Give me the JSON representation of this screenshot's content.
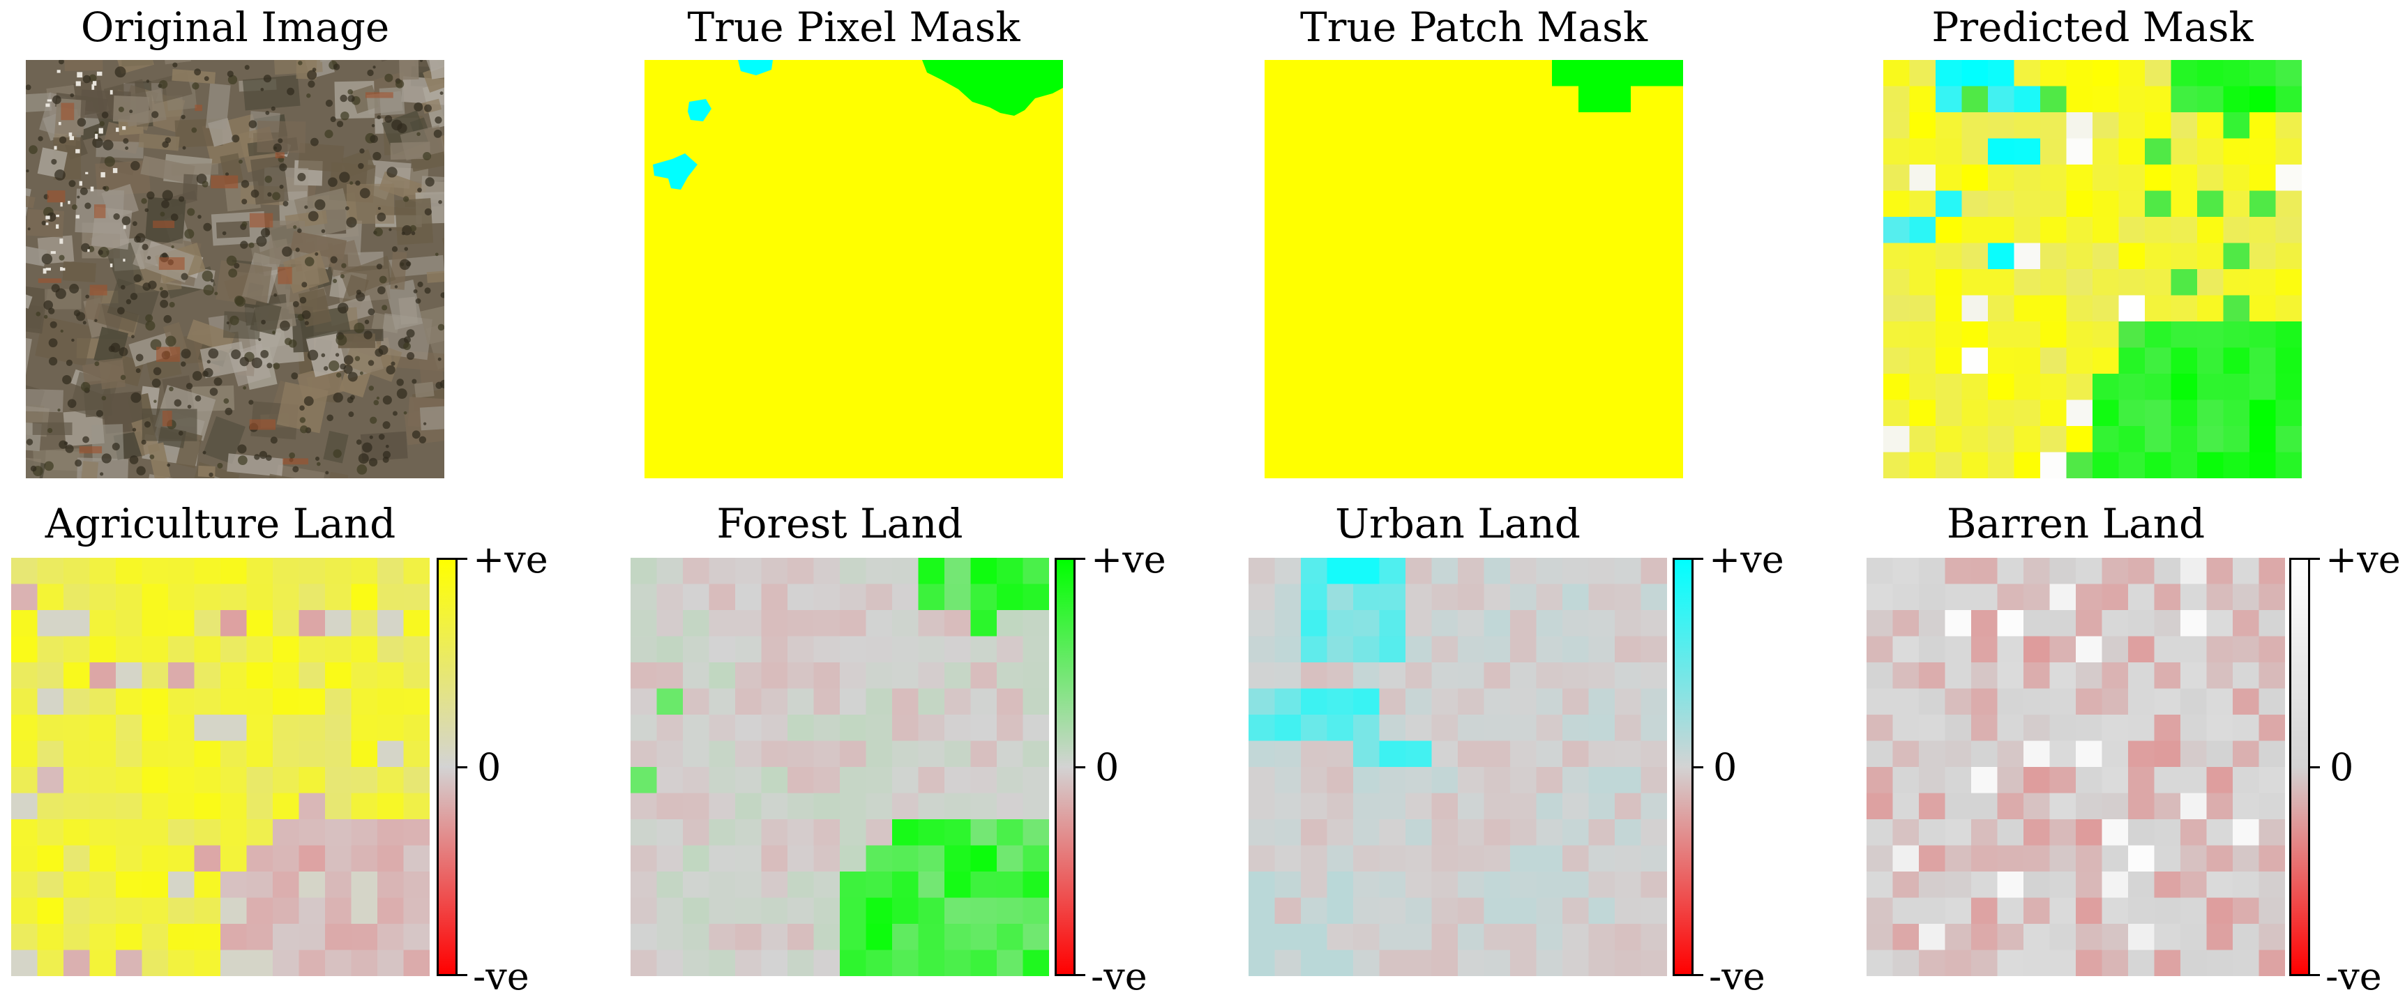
{
  "titles": {
    "original": "Original Image",
    "true_pixel": "True Pixel Mask",
    "true_patch": "True Patch Mask",
    "predicted": "Predicted Mask",
    "agriculture": "Agriculture Land",
    "forest": "Forest Land",
    "urban": "Urban Land",
    "barren": "Barren Land"
  },
  "colorbar_labels": {
    "top": "+ve",
    "mid": "0",
    "bottom": "-ve"
  },
  "colors": {
    "agriculture": "#ffff00",
    "forest": "#00ff00",
    "urban": "#00ffff",
    "barren": "#ffffff",
    "negative": "#ff0000",
    "neutral": "#d3d3d3"
  }
}
